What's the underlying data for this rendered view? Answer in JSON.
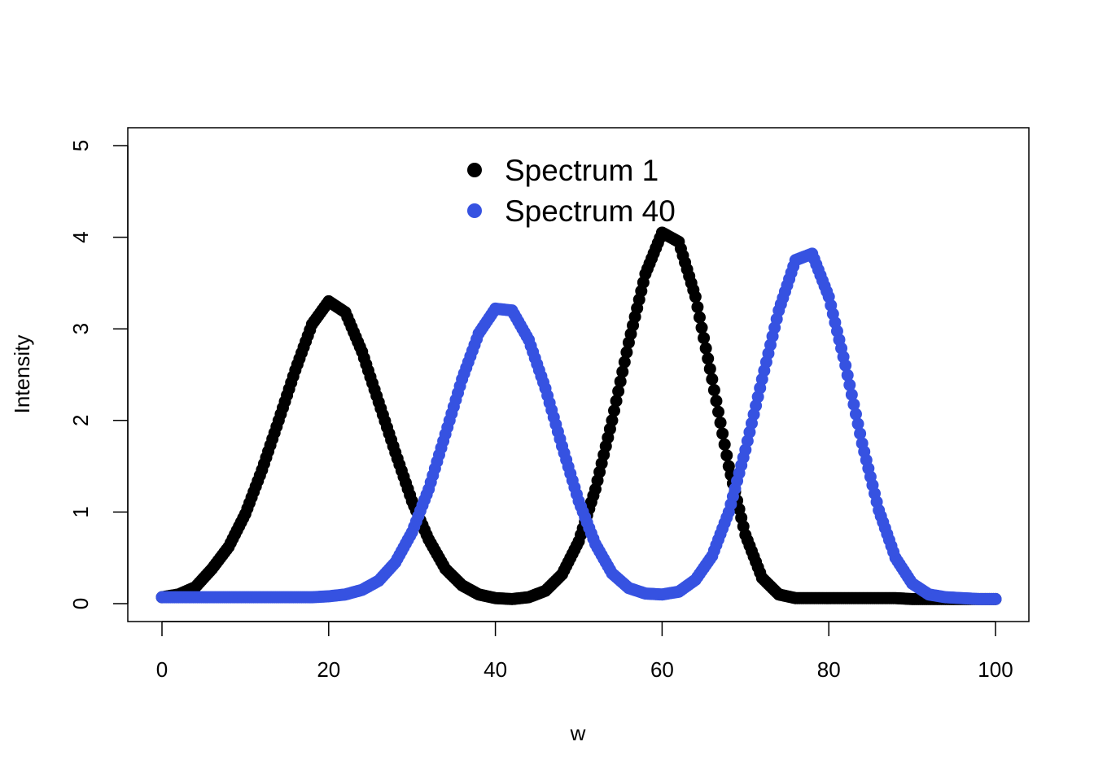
{
  "chart_data": {
    "type": "scatter",
    "title": "",
    "xlabel": "w",
    "ylabel": "Intensity",
    "xlim": [
      0,
      100
    ],
    "ylim": [
      0,
      5
    ],
    "x_ticks": [
      "0",
      "20",
      "40",
      "60",
      "80",
      "100"
    ],
    "y_ticks": [
      "0",
      "1",
      "2",
      "3",
      "4",
      "5"
    ],
    "grid": false,
    "legend_position": "top-center",
    "series": [
      {
        "name": "Spectrum 1",
        "color": "#000000",
        "points": [
          [
            0,
            0.07
          ],
          [
            2,
            0.1
          ],
          [
            4,
            0.18
          ],
          [
            6,
            0.38
          ],
          [
            8,
            0.62
          ],
          [
            10,
            0.98
          ],
          [
            12,
            1.46
          ],
          [
            14,
            2.0
          ],
          [
            16,
            2.55
          ],
          [
            18,
            3.05
          ],
          [
            20,
            3.3
          ],
          [
            22,
            3.18
          ],
          [
            24,
            2.75
          ],
          [
            26,
            2.2
          ],
          [
            28,
            1.65
          ],
          [
            30,
            1.12
          ],
          [
            32,
            0.7
          ],
          [
            34,
            0.38
          ],
          [
            36,
            0.2
          ],
          [
            38,
            0.1
          ],
          [
            40,
            0.06
          ],
          [
            42,
            0.05
          ],
          [
            44,
            0.07
          ],
          [
            46,
            0.14
          ],
          [
            48,
            0.32
          ],
          [
            50,
            0.68
          ],
          [
            52,
            1.25
          ],
          [
            54,
            2.0
          ],
          [
            56,
            2.85
          ],
          [
            58,
            3.6
          ],
          [
            60,
            4.05
          ],
          [
            62,
            3.95
          ],
          [
            64,
            3.35
          ],
          [
            66,
            2.45
          ],
          [
            68,
            1.5
          ],
          [
            70,
            0.75
          ],
          [
            72,
            0.28
          ],
          [
            74,
            0.1
          ],
          [
            76,
            0.06
          ],
          [
            78,
            0.06
          ],
          [
            80,
            0.06
          ],
          [
            82,
            0.06
          ],
          [
            84,
            0.06
          ],
          [
            86,
            0.06
          ],
          [
            88,
            0.06
          ],
          [
            90,
            0.05
          ],
          [
            92,
            0.05
          ],
          [
            94,
            0.05
          ],
          [
            96,
            0.05
          ],
          [
            98,
            0.05
          ],
          [
            100,
            0.05
          ]
        ]
      },
      {
        "name": "Spectrum 40",
        "color": "#3652e1",
        "points": [
          [
            0,
            0.07
          ],
          [
            2,
            0.07
          ],
          [
            4,
            0.07
          ],
          [
            6,
            0.07
          ],
          [
            8,
            0.07
          ],
          [
            10,
            0.07
          ],
          [
            12,
            0.07
          ],
          [
            14,
            0.07
          ],
          [
            16,
            0.07
          ],
          [
            18,
            0.07
          ],
          [
            20,
            0.08
          ],
          [
            22,
            0.1
          ],
          [
            24,
            0.15
          ],
          [
            26,
            0.25
          ],
          [
            28,
            0.45
          ],
          [
            30,
            0.78
          ],
          [
            32,
            1.25
          ],
          [
            34,
            1.85
          ],
          [
            36,
            2.45
          ],
          [
            38,
            2.95
          ],
          [
            40,
            3.22
          ],
          [
            42,
            3.2
          ],
          [
            44,
            2.88
          ],
          [
            46,
            2.35
          ],
          [
            48,
            1.72
          ],
          [
            50,
            1.12
          ],
          [
            52,
            0.65
          ],
          [
            54,
            0.33
          ],
          [
            56,
            0.17
          ],
          [
            58,
            0.11
          ],
          [
            60,
            0.1
          ],
          [
            62,
            0.13
          ],
          [
            64,
            0.26
          ],
          [
            66,
            0.52
          ],
          [
            68,
            1.0
          ],
          [
            70,
            1.68
          ],
          [
            72,
            2.45
          ],
          [
            74,
            3.2
          ],
          [
            76,
            3.75
          ],
          [
            78,
            3.82
          ],
          [
            80,
            3.35
          ],
          [
            82,
            2.6
          ],
          [
            84,
            1.75
          ],
          [
            86,
            1.02
          ],
          [
            88,
            0.5
          ],
          [
            90,
            0.22
          ],
          [
            92,
            0.1
          ],
          [
            94,
            0.07
          ],
          [
            96,
            0.06
          ],
          [
            98,
            0.05
          ],
          [
            100,
            0.05
          ]
        ]
      }
    ]
  }
}
